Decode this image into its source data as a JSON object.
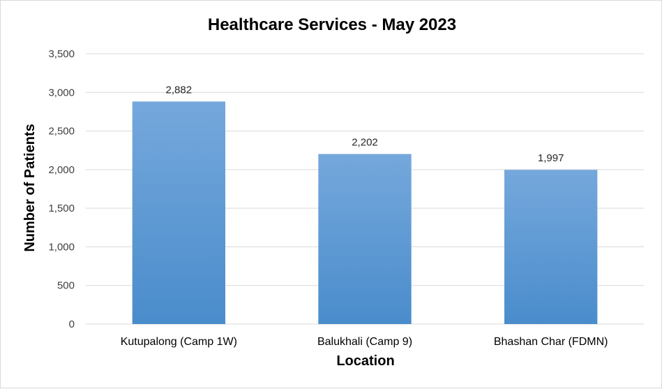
{
  "chart_data": {
    "type": "bar",
    "title": "Healthcare Services - May 2023",
    "xlabel": "Location",
    "ylabel": "Number of Patients",
    "categories": [
      "Kutupalong (Camp 1W)",
      "Balukhali (Camp 9)",
      "Bhashan Char (FDMN)"
    ],
    "values": [
      2882,
      2202,
      1997
    ],
    "value_labels": [
      "2,882",
      "2,202",
      "1,997"
    ],
    "ylim": [
      0,
      3500
    ],
    "yticks": [
      0,
      500,
      1000,
      1500,
      2000,
      2500,
      3000,
      3500
    ],
    "ytick_labels": [
      "0",
      "500",
      "1,000",
      "1,500",
      "2,000",
      "2,500",
      "3,000",
      "3,500"
    ],
    "grid": true,
    "legend": "none",
    "colors": {
      "bar_top": "#75a8dc",
      "bar_bottom": "#4a8ccc",
      "grid": "#d9d9d9"
    }
  }
}
